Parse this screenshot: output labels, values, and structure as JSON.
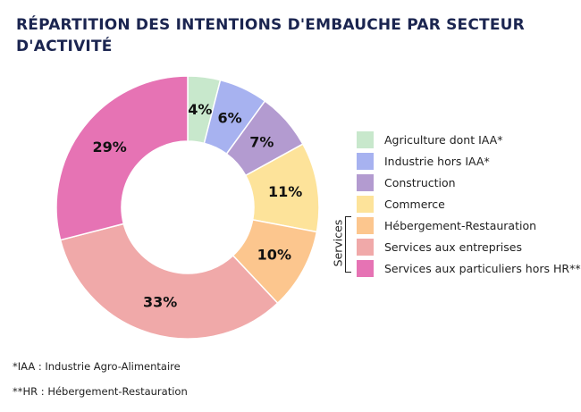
{
  "title_line1": "RÉPARTITION DES INTENTIONS D'EMBAUCHE PAR SECTEUR",
  "title_line2": "D'ACTIVITÉ",
  "chart_data": {
    "type": "pie",
    "title": "RÉPARTITION DES INTENTIONS D'EMBAUCHE PAR SECTEUR D'ACTIVITÉ",
    "categories": [
      "Agriculture dont IAA*",
      "Industrie hors IAA*",
      "Construction",
      "Commerce",
      "Hébergement-Restauration",
      "Services aux entreprises",
      "Services aux particuliers hors HR**"
    ],
    "values": [
      4,
      6,
      7,
      11,
      10,
      33,
      29
    ],
    "labels": [
      "4%",
      "6%",
      "7%",
      "11%",
      "10%",
      "33%",
      "29%"
    ],
    "colors": [
      "#c8e8cc",
      "#a7b2f0",
      "#b39bd0",
      "#fde39a",
      "#fcc68e",
      "#f0a9a9",
      "#e673b4"
    ],
    "donut": true,
    "legend_position": "right"
  },
  "legend": {
    "group_label": "Services"
  },
  "footnotes": [
    "*IAA : Industrie Agro-Alimentaire",
    "**HR : Hébergement-Restauration"
  ]
}
